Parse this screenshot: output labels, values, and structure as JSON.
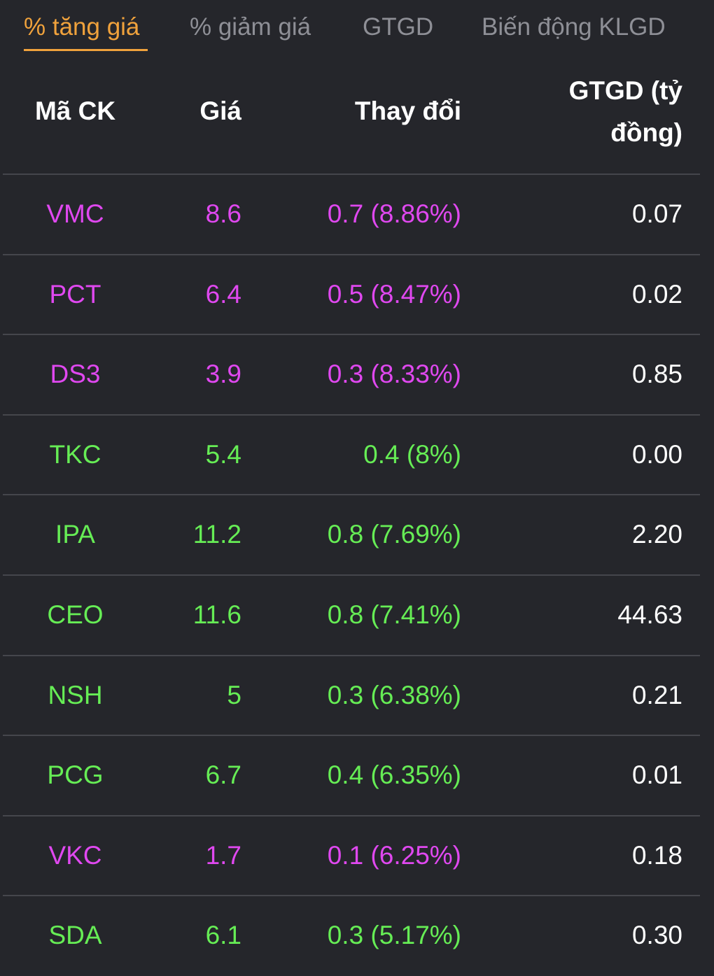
{
  "tabs": [
    {
      "label": "% tăng giá",
      "active": true
    },
    {
      "label": "% giảm giá",
      "active": false
    },
    {
      "label": "GTGD",
      "active": false
    },
    {
      "label": "Biến động KLGD",
      "active": false
    }
  ],
  "table": {
    "headers": {
      "symbol": "Mã CK",
      "price": "Giá",
      "change": "Thay đổi",
      "value": "GTGD (tỷ đồng)"
    },
    "colors": {
      "ceiling": "#e048f0",
      "up": "#66ed55",
      "neutral": "#ffffff",
      "accent": "#f0a23c"
    },
    "rows": [
      {
        "symbol": "VMC",
        "price": "8.6",
        "change": "0.7 (8.86%)",
        "value": "0.07",
        "status": "ceiling"
      },
      {
        "symbol": "PCT",
        "price": "6.4",
        "change": "0.5 (8.47%)",
        "value": "0.02",
        "status": "ceiling"
      },
      {
        "symbol": "DS3",
        "price": "3.9",
        "change": "0.3 (8.33%)",
        "value": "0.85",
        "status": "ceiling"
      },
      {
        "symbol": "TKC",
        "price": "5.4",
        "change": "0.4 (8%)",
        "value": "0.00",
        "status": "up"
      },
      {
        "symbol": "IPA",
        "price": "11.2",
        "change": "0.8 (7.69%)",
        "value": "2.20",
        "status": "up"
      },
      {
        "symbol": "CEO",
        "price": "11.6",
        "change": "0.8 (7.41%)",
        "value": "44.63",
        "status": "up"
      },
      {
        "symbol": "NSH",
        "price": "5",
        "change": "0.3 (6.38%)",
        "value": "0.21",
        "status": "up"
      },
      {
        "symbol": "PCG",
        "price": "6.7",
        "change": "0.4 (6.35%)",
        "value": "0.01",
        "status": "up"
      },
      {
        "symbol": "VKC",
        "price": "1.7",
        "change": "0.1 (6.25%)",
        "value": "0.18",
        "status": "ceiling"
      },
      {
        "symbol": "SDA",
        "price": "6.1",
        "change": "0.3 (5.17%)",
        "value": "0.30",
        "status": "up"
      }
    ]
  }
}
